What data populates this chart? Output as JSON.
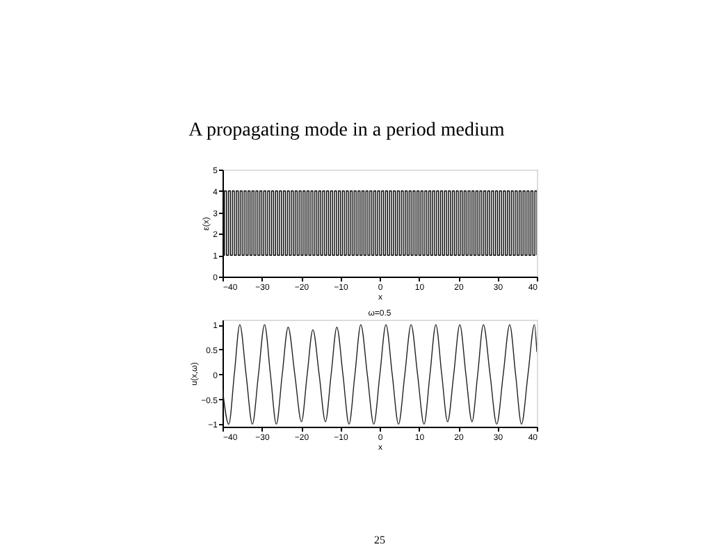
{
  "chart_data": [
    {
      "type": "step",
      "title": "A propagating mode in a period medium",
      "xlabel": "x",
      "ylabel": "ε(x)",
      "xlim": [
        -40,
        40
      ],
      "xticks": [
        -40,
        -30,
        -20,
        -10,
        0,
        10,
        20,
        30,
        40
      ],
      "ylim": [
        0,
        5
      ],
      "yticks": [
        0,
        1,
        2,
        3,
        4,
        5
      ],
      "grid": false,
      "marker": "none",
      "series": [
        {
          "color": "#000000",
          "x": [
            -40,
            -39.5,
            -39,
            -38.5,
            -38,
            -37.5,
            -37,
            -36.5,
            -36,
            -35.5,
            -35,
            -34.5,
            -34,
            -33.5,
            -33,
            -32.5,
            -32,
            -31.5,
            -31,
            -30.5,
            -30,
            -29.5,
            -29,
            -28.5,
            -28,
            -27.5,
            -27,
            -26.5,
            -26,
            -25.5,
            -25,
            -24.5,
            -24,
            -23.5,
            -23,
            -22.5,
            -22,
            -21.5,
            -21,
            -20.5,
            -20,
            -19.5,
            -19,
            -18.5,
            -18,
            -17.5,
            -17,
            -16.5,
            -16,
            -15.5,
            -15,
            -14.5,
            -14,
            -13.5,
            -13,
            -12.5,
            -12,
            -11.5,
            -11,
            -10.5,
            -10,
            -9.5,
            -9,
            -8.5,
            -8,
            -7.5,
            -7,
            -6.5,
            -6,
            -5.5,
            -5,
            -4.5,
            -4,
            -3.5,
            -3,
            -2.5,
            -2,
            -1.5,
            -1,
            -0.5,
            0,
            0.5,
            1,
            1.5,
            2,
            2.5,
            3,
            3.5,
            4,
            4.5,
            5,
            5.5,
            6,
            6.5,
            7,
            7.5,
            8,
            8.5,
            9,
            9.5,
            10,
            10.5,
            11,
            11.5,
            12,
            12.5,
            13,
            13.5,
            14,
            14.5,
            15,
            15.5,
            16,
            16.5,
            17,
            17.5,
            18,
            18.5,
            19,
            19.5,
            20,
            20.5,
            21,
            21.5,
            22,
            22.5,
            23,
            23.5,
            24,
            24.5,
            25,
            25.5,
            26,
            26.5,
            27,
            27.5,
            28,
            28.5,
            29,
            29.5,
            30,
            30.5,
            31,
            31.5,
            32,
            32.5,
            33,
            33.5,
            34,
            34.5,
            35,
            35.5,
            36,
            36.5,
            37,
            37.5,
            38,
            38.5,
            39,
            39.5,
            40
          ],
          "values": [
            1,
            4,
            1,
            4,
            1,
            4,
            1,
            4,
            1,
            4,
            1,
            4,
            1,
            4,
            1,
            4,
            1,
            4,
            1,
            4,
            1,
            4,
            1,
            4,
            1,
            4,
            1,
            4,
            1,
            4,
            1,
            4,
            1,
            4,
            1,
            4,
            1,
            4,
            1,
            4,
            1,
            4,
            1,
            4,
            1,
            4,
            1,
            4,
            1,
            4,
            1,
            4,
            1,
            4,
            1,
            4,
            1,
            4,
            1,
            4,
            1,
            4,
            1,
            4,
            1,
            4,
            1,
            4,
            1,
            4,
            1,
            4,
            1,
            4,
            1,
            4,
            1,
            4,
            1,
            4,
            1,
            4,
            1,
            4,
            1,
            4,
            1,
            4,
            1,
            4,
            1,
            4,
            1,
            4,
            1,
            4,
            1,
            4,
            1,
            4,
            1,
            4,
            1,
            4,
            1,
            4,
            1,
            4,
            1,
            4,
            1,
            4,
            1,
            4,
            1,
            4,
            1,
            4,
            1,
            4,
            1,
            4,
            1,
            4,
            1,
            4,
            1,
            4,
            1,
            4,
            1,
            4,
            1,
            4,
            1,
            4,
            1,
            4,
            1,
            4,
            1,
            4,
            1,
            4,
            1,
            4,
            1,
            4,
            1,
            4,
            1,
            4,
            1,
            4,
            1,
            4,
            1,
            4,
            1,
            4,
            1
          ]
        }
      ]
    },
    {
      "type": "line",
      "title": "ω=0.5",
      "xlabel": "x",
      "ylabel": "u(x,ω)",
      "xlim": [
        -40,
        40
      ],
      "xticks": [
        -40,
        -30,
        -20,
        -10,
        0,
        10,
        20,
        30,
        40
      ],
      "ylim": [
        -1.05,
        1.1
      ],
      "yticks": [
        -1,
        -0.5,
        0,
        0.5,
        1
      ],
      "grid": false,
      "marker": "none",
      "annotations": [
        "25"
      ],
      "series": [
        {
          "color": "#222222",
          "x": [
            -40,
            -38.4,
            -37.0,
            -35.6,
            -34.0,
            -32.4,
            -30.85,
            -29.3,
            -27.8,
            -26.3,
            -24.8,
            -23.3,
            -21.6,
            -19.9,
            -18.45,
            -17.0,
            -15.4,
            -13.8,
            -12.35,
            -10.9,
            -9.35,
            -7.8,
            -6.3,
            -4.8,
            -3.15,
            -1.5,
            0.05,
            1.6,
            3.2,
            4.8,
            6.4,
            8.0,
            9.65,
            11.3,
            12.8,
            14.3,
            15.8,
            17.3,
            18.85,
            20.4,
            21.95,
            23.5,
            24.95,
            26.4,
            28.1,
            29.8,
            31.45,
            33.1,
            34.6,
            36.1,
            37.75,
            39.4,
            40
          ],
          "values": [
            -0.3,
            -1,
            0,
            1,
            0,
            -1,
            0,
            1,
            0,
            -1,
            0,
            0.95,
            0,
            -0.95,
            0,
            0.9,
            0,
            -0.95,
            0,
            0.95,
            0,
            -1,
            0,
            1,
            0,
            -1,
            0,
            1,
            0,
            -1,
            0,
            1,
            0,
            -1,
            0,
            1,
            0,
            -0.95,
            0,
            1,
            0,
            -0.95,
            0,
            1,
            0,
            -1,
            0,
            1,
            0,
            -1,
            0,
            1,
            0.45
          ]
        }
      ]
    }
  ]
}
